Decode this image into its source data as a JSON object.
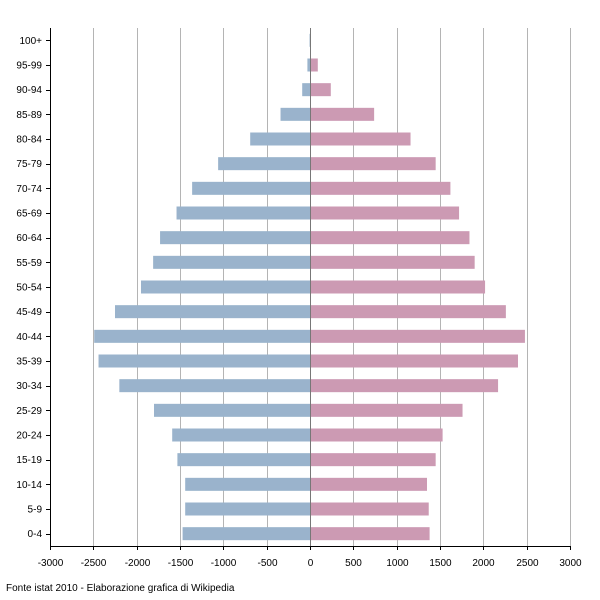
{
  "chart_data": {
    "type": "bar",
    "orientation": "horizontal",
    "subtype": "population-pyramid",
    "title": "",
    "xlabel": "",
    "ylabel": "",
    "categories": [
      "0-4",
      "5-9",
      "10-14",
      "15-19",
      "20-24",
      "25-29",
      "30-34",
      "35-39",
      "40-44",
      "45-49",
      "50-54",
      "55-59",
      "60-64",
      "65-69",
      "70-74",
      "75-79",
      "80-84",
      "85-89",
      "90-94",
      "95-99",
      "100+"
    ],
    "series": [
      {
        "color": "#9ab3cc",
        "values": [
          -1470,
          -1440,
          -1440,
          -1530,
          -1590,
          -1800,
          -2200,
          -2440,
          -2490,
          -2250,
          -1950,
          -1810,
          -1730,
          -1540,
          -1360,
          -1060,
          -690,
          -340,
          -90,
          -30,
          -5
        ]
      },
      {
        "color": "#cc9ab3",
        "values": [
          1380,
          1370,
          1350,
          1450,
          1530,
          1760,
          2170,
          2400,
          2480,
          2260,
          2020,
          1900,
          1840,
          1720,
          1620,
          1450,
          1160,
          740,
          240,
          90,
          10
        ]
      }
    ],
    "xlim": [
      -3000,
      3000
    ],
    "xticks": [
      -3000,
      -2500,
      -2000,
      -1500,
      -1000,
      -500,
      0,
      500,
      1000,
      1500,
      2000,
      2500,
      3000
    ],
    "xtick_labels": [
      "-3000",
      "-2500",
      "-2000",
      "-1500",
      "-1000",
      "-500",
      "0",
      "500",
      "1000",
      "1500",
      "2000",
      "2500",
      "3000"
    ],
    "grid": true,
    "legend": "none"
  },
  "footer": {
    "source": "Fonte istat 2010 - Elaborazione grafica di Wikipedia"
  }
}
